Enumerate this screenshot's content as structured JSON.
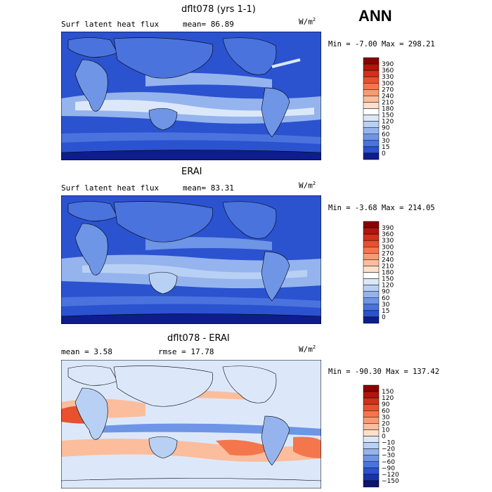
{
  "season": "ANN",
  "panels": [
    {
      "title": "dflt078 (yrs 1-1)",
      "variable": "Surf latent heat flux",
      "stat_left": "mean=  86.89",
      "units_base": "W/m",
      "units_exp": "2",
      "minmax": "Min =  -7.00 Max = 298.21"
    },
    {
      "title": "ERAI",
      "variable": "Surf latent heat flux",
      "stat_left": "mean=  83.31",
      "units_base": "W/m",
      "units_exp": "2",
      "minmax": "Min =  -3.68 Max = 214.05"
    },
    {
      "title": "dflt078 - ERAI",
      "variable": "",
      "stat_left": "mean =   3.58",
      "stat_right": "rmse =  17.78",
      "units_base": "W/m",
      "units_exp": "2",
      "minmax": "Min = -90.30 Max = 137.42"
    }
  ],
  "chart_data": [
    {
      "type": "heatmap",
      "title": "dflt078 (yrs 1-1)",
      "colorbar_levels": [
        "390",
        "360",
        "330",
        "300",
        "270",
        "240",
        "210",
        "180",
        "150",
        "120",
        "90",
        "60",
        "30",
        "15",
        "0"
      ],
      "colorbar_colors": [
        "#8b0000",
        "#b0160d",
        "#d0301c",
        "#e8502f",
        "#f4764c",
        "#f89b72",
        "#fbbd9c",
        "#fde0cc",
        "#ffffff",
        "#dce8fa",
        "#b8d0f4",
        "#95b4ee",
        "#6e95e6",
        "#4a73dd",
        "#2b52cf",
        "#0e1d8c"
      ]
    },
    {
      "type": "heatmap",
      "title": "ERAI",
      "colorbar_levels": [
        "390",
        "360",
        "330",
        "300",
        "270",
        "240",
        "210",
        "180",
        "150",
        "120",
        "90",
        "60",
        "30",
        "15",
        "0"
      ],
      "colorbar_colors": [
        "#8b0000",
        "#b0160d",
        "#d0301c",
        "#e8502f",
        "#f4764c",
        "#f89b72",
        "#fbbd9c",
        "#fde0cc",
        "#ffffff",
        "#dce8fa",
        "#b8d0f4",
        "#95b4ee",
        "#6e95e6",
        "#4a73dd",
        "#2b52cf",
        "#0e1d8c"
      ]
    },
    {
      "type": "heatmap",
      "title": "dflt078 - ERAI",
      "colorbar_levels": [
        "150",
        "120",
        "90",
        "60",
        "30",
        "20",
        "10",
        "0",
        "−10",
        "−20",
        "−30",
        "−60",
        "−90",
        "−120",
        "−150"
      ],
      "colorbar_colors": [
        "#8b0000",
        "#b0160d",
        "#d0301c",
        "#e8502f",
        "#f4764c",
        "#f89b72",
        "#fbbd9c",
        "#fde0cc",
        "#dce8fa",
        "#b8d0f4",
        "#95b4ee",
        "#6e95e6",
        "#4a73dd",
        "#2b52cf",
        "#1a33a8",
        "#0b1470"
      ]
    }
  ]
}
